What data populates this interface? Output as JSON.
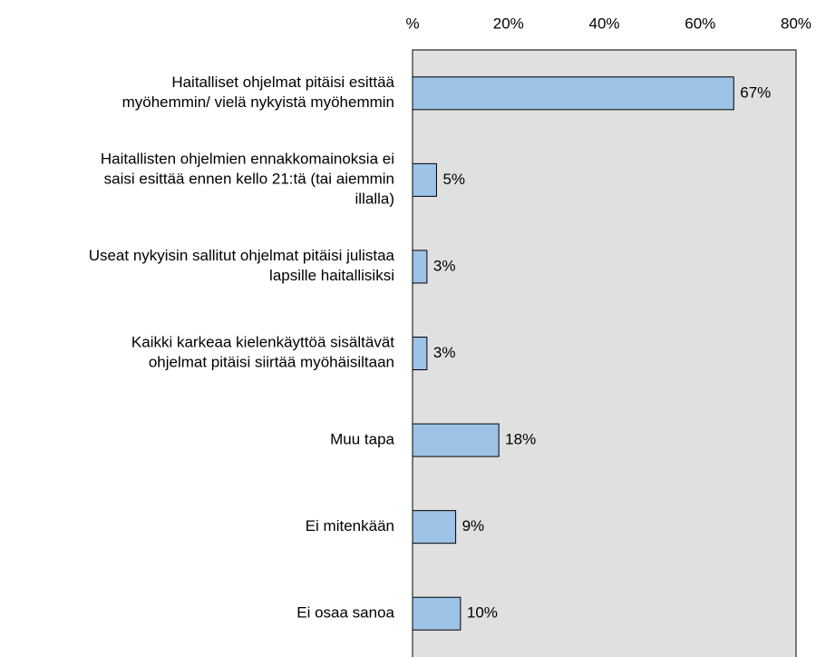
{
  "chart_data": {
    "type": "barh",
    "categories": [
      "Haitalliset ohjelmat pitäisi esittää\nmyöhemmin/ vielä nykyistä myöhemmin",
      "Haitallisten ohjelmien ennakkomainoksia ei\nsaisi esittää ennen kello 21:tä (tai aiemmin\nillalla)",
      "Useat nykyisin sallitut ohjelmat pitäisi julistaa\nlapsille haitallisiksi",
      "Kaikki karkeaa kielenkäyttöä sisältävät\nohjelmat pitäisi siirtää myöhäisiltaan",
      "Muu tapa",
      "Ei mitenkään",
      "Ei osaa sanoa"
    ],
    "values": [
      67,
      5,
      3,
      3,
      18,
      9,
      10
    ],
    "value_labels": [
      "67%",
      "5%",
      "3%",
      "3%",
      "18%",
      "9%",
      "10%"
    ],
    "color": "#9dc3e6",
    "xlim": [
      0,
      80
    ],
    "xticks": [
      {
        "value": 0,
        "label": "%"
      },
      {
        "value": 20,
        "label": "20%"
      },
      {
        "value": 40,
        "label": "40%"
      },
      {
        "value": 60,
        "label": "60%"
      },
      {
        "value": 80,
        "label": "80%"
      }
    ],
    "grid": false
  }
}
